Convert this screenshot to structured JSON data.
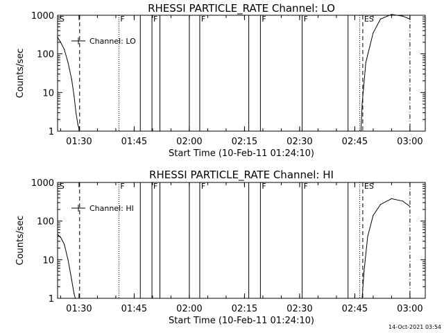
{
  "chart_data": [
    {
      "type": "line",
      "title": "RHESSI PARTICLE_RATE Channel: LO",
      "xlabel": "Start Time (10-Feb-11 01:24:10)",
      "ylabel": "Counts/sec",
      "yscale": "log",
      "ylim": [
        1,
        1000
      ],
      "xlim": [
        "01:24:10",
        "03:04:10"
      ],
      "x_ticks": [
        "01:30",
        "01:45",
        "02:00",
        "02:15",
        "02:30",
        "02:45",
        "03:00"
      ],
      "y_ticks": [
        "1",
        "10",
        "100",
        "1000"
      ],
      "legend": "Channel: LO",
      "event_labels": [
        "S",
        "F",
        "F",
        "F",
        "F",
        "F",
        "ES"
      ],
      "series": [
        {
          "x": [
            "01:24:10",
            "01:25:00",
            "01:26:00",
            "01:27:00",
            "01:28:00",
            "01:28:40",
            "01:29:10",
            "01:29:40",
            "01:30:10"
          ],
          "y": [
            270,
            200,
            130,
            60,
            22,
            8,
            3,
            1.5,
            1
          ]
        },
        {
          "x": [
            "02:46:40",
            "02:47:00",
            "02:48:00",
            "02:50:00",
            "02:52:00",
            "02:55:00",
            "02:58:00",
            "03:00:00"
          ],
          "y": [
            1,
            5,
            60,
            350,
            800,
            1050,
            950,
            800
          ]
        }
      ]
    },
    {
      "type": "line",
      "title": "RHESSI PARTICLE_RATE Channel: HI",
      "xlabel": "Start Time (10-Feb-11 01:24:10)",
      "ylabel": "Counts/sec",
      "yscale": "log",
      "ylim": [
        1,
        1000
      ],
      "xlim": [
        "01:24:10",
        "03:04:10"
      ],
      "x_ticks": [
        "01:30",
        "01:45",
        "02:00",
        "02:15",
        "02:30",
        "02:45",
        "03:00"
      ],
      "y_ticks": [
        "1",
        "10",
        "100",
        "1000"
      ],
      "legend": "Channel: HI",
      "event_labels": [
        "S",
        "F",
        "F",
        "F",
        "F",
        "F",
        "ES"
      ],
      "series": [
        {
          "x": [
            "01:24:10",
            "01:25:00",
            "01:26:00",
            "01:27:00",
            "01:28:00",
            "01:28:40",
            "01:29:00"
          ],
          "y": [
            45,
            38,
            25,
            10,
            3,
            1.3,
            1
          ]
        },
        {
          "x": [
            "02:47:00",
            "02:47:30",
            "02:48:30",
            "02:50:00",
            "02:52:00",
            "02:55:00",
            "02:58:00",
            "03:00:00"
          ],
          "y": [
            1,
            5,
            40,
            140,
            270,
            380,
            330,
            240
          ]
        }
      ]
    }
  ],
  "footer_timestamp": "14-Oct-2021 03:54"
}
